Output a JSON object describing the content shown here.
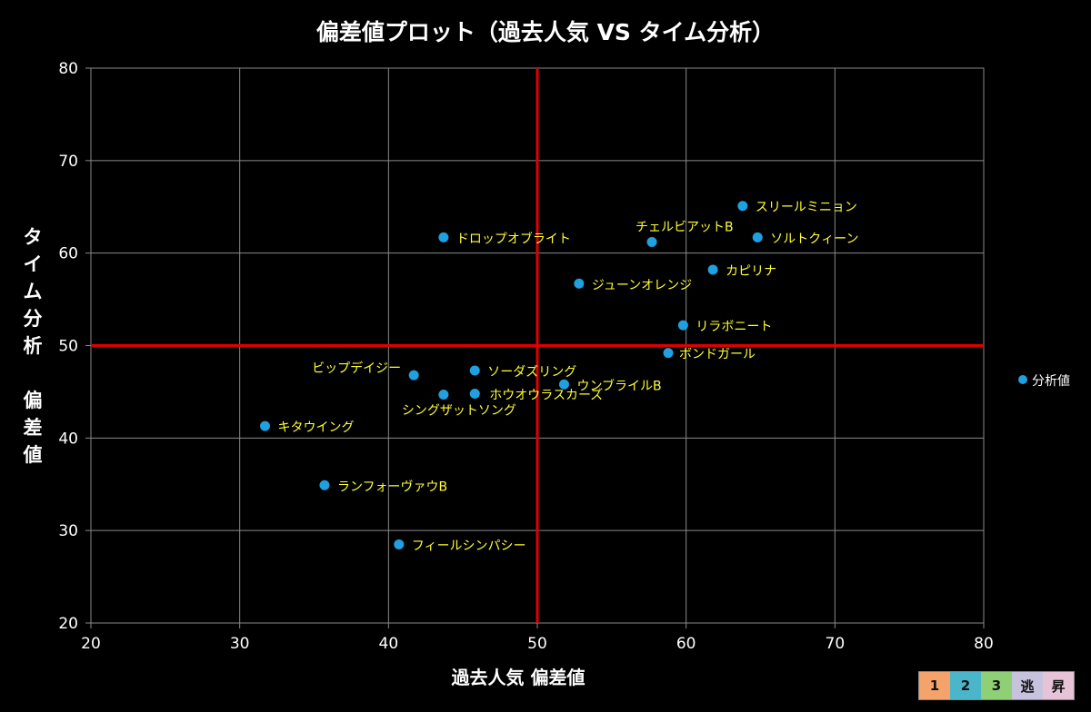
{
  "chart_data": {
    "type": "scatter",
    "title": "偏差値プロット（過去人気 VS タイム分析）",
    "xlabel": "過去人気 偏差値",
    "ylabel": "タイム分析　偏差値",
    "xlim": [
      20,
      80
    ],
    "ylim": [
      20,
      80
    ],
    "xticks": [
      "20",
      "30",
      "40",
      "50",
      "60",
      "70",
      "80"
    ],
    "yticks": [
      "20",
      "30",
      "40",
      "50",
      "60",
      "70",
      "80"
    ],
    "grid": true,
    "legend": {
      "position": "right",
      "label": "分析値"
    },
    "reference_lines": {
      "x": 50,
      "y": 50,
      "color": "#e00000"
    },
    "point_color": "#1fa0e0",
    "label_color": "#ffff33",
    "series": [
      {
        "name": "分析値",
        "points": [
          {
            "label": "スリールミニョン",
            "x": 63.8,
            "y": 65.1
          },
          {
            "label": "ドロップオブライト",
            "x": 43.7,
            "y": 61.7
          },
          {
            "label": "チェルビアットB",
            "x": 57.7,
            "y": 61.2
          },
          {
            "label": "ソルトクィーン",
            "x": 64.8,
            "y": 61.7
          },
          {
            "label": "カピリナ",
            "x": 61.8,
            "y": 58.2
          },
          {
            "label": "ジューンオレンジ",
            "x": 52.8,
            "y": 56.7
          },
          {
            "label": "リラボニート",
            "x": 59.8,
            "y": 52.2
          },
          {
            "label": "ボンドガール",
            "x": 58.8,
            "y": 49.2
          },
          {
            "label": "ビップデイジー",
            "x": 41.7,
            "y": 46.8
          },
          {
            "label": "ソーダズリング",
            "x": 45.8,
            "y": 47.3
          },
          {
            "label": "ウンブライルB",
            "x": 51.8,
            "y": 45.8
          },
          {
            "label": "シングザットソング",
            "x": 43.7,
            "y": 44.7
          },
          {
            "label": "ホウオウラスカーズ",
            "x": 45.8,
            "y": 44.8
          },
          {
            "label": "キタウイング",
            "x": 31.7,
            "y": 41.3
          },
          {
            "label": "ランフォーヴァウB",
            "x": 35.7,
            "y": 34.9
          },
          {
            "label": "フィールシンパシー",
            "x": 40.7,
            "y": 28.5
          }
        ]
      }
    ]
  },
  "badges": [
    {
      "label": "1",
      "color": "#f4a46a"
    },
    {
      "label": "2",
      "color": "#4bb6c9"
    },
    {
      "label": "3",
      "color": "#8fcf75"
    },
    {
      "label": "逃",
      "color": "#c7c3de"
    },
    {
      "label": "昇",
      "color": "#e6c3d7"
    }
  ]
}
